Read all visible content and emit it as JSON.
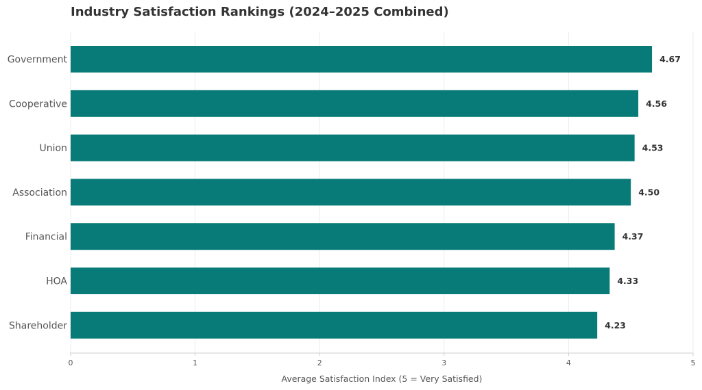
{
  "chart_data": {
    "type": "bar",
    "orientation": "horizontal",
    "title": "Industry Satisfaction Rankings (2024–2025 Combined)",
    "xlabel": "Average Satisfaction Index (5 = Very Satisfied)",
    "ylabel": "",
    "categories": [
      "Government",
      "Cooperative",
      "Union",
      "Association",
      "Financial",
      "HOA",
      "Shareholder"
    ],
    "values": [
      4.67,
      4.56,
      4.53,
      4.5,
      4.37,
      4.33,
      4.23
    ],
    "value_labels": [
      "4.67",
      "4.56",
      "4.53",
      "4.50",
      "4.37",
      "4.33",
      "4.23"
    ],
    "xlim": [
      0,
      5
    ],
    "xticks": [
      0,
      1,
      2,
      3,
      4,
      5
    ],
    "grid": true,
    "bar_color": "#087B78"
  }
}
